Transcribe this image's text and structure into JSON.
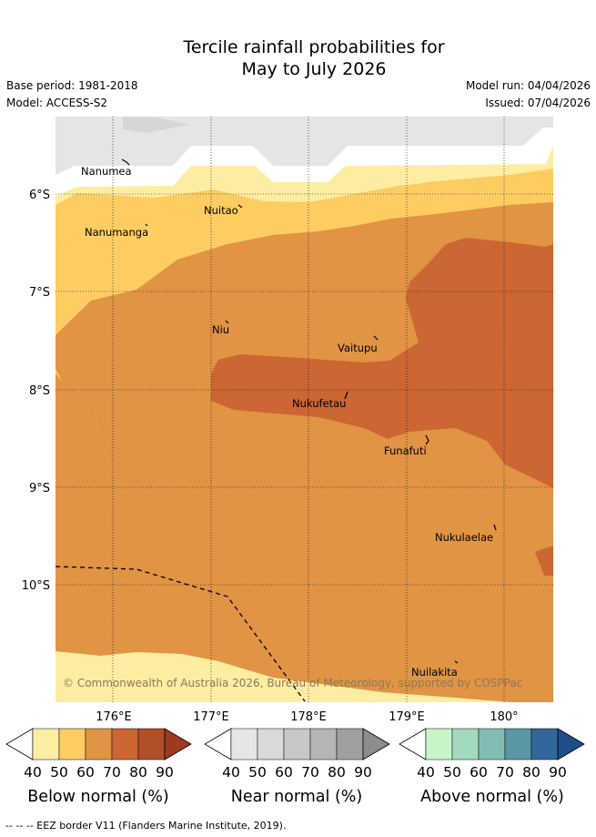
{
  "header": {
    "title_line1": "Tercile rainfall probabilities for",
    "title_line2": "May to July 2026",
    "base_period": "Base period: 1981-2018",
    "model": "Model: ACCESS-S2",
    "model_run": "Model run: 04/04/2026",
    "issued": "Issued: 07/04/2026"
  },
  "map": {
    "places": [
      "Nanumea",
      "Nanumanga",
      "Nuitao",
      "Niu",
      "Vaitupu",
      "Nukufetau",
      "Funafuti",
      "Nukulaelae",
      "Nuilakita"
    ],
    "lat_ticks": [
      "6°S",
      "7°S",
      "8°S",
      "9°S",
      "10°S"
    ],
    "lon_ticks": [
      "176°E",
      "177°E",
      "178°E",
      "179°E",
      "180°"
    ],
    "copyright": "© Commonwealth of Australia 2026, Bureau of Meteorology, supported by COSPPac",
    "colors": {
      "near_normal_grey": "#e5e5e5",
      "below_40_50": "#fdeda2",
      "below_50_60": "#fdcd62",
      "below_60_70": "#e09444",
      "below_70_80": "#cc6633"
    }
  },
  "colorbars": {
    "ticks": [
      "40",
      "50",
      "60",
      "70",
      "80",
      "90"
    ],
    "below": {
      "label": "Below normal (%)",
      "colors": [
        "#fdeda2",
        "#fdcd62",
        "#e09444",
        "#cc6633",
        "#b05028",
        "#9e3a22"
      ]
    },
    "near": {
      "label": "Near normal (%)",
      "colors": [
        "#e6e6e6",
        "#d9d9d9",
        "#c8c8c8",
        "#b5b5b5",
        "#a0a0a0",
        "#8c8c8c"
      ]
    },
    "above": {
      "label": "Above normal (%)",
      "colors": [
        "#c8f5c8",
        "#a3d9bd",
        "#83bcb5",
        "#5a96a3",
        "#336699",
        "#1f4e88"
      ]
    }
  },
  "footer": {
    "eez_legend": "--  --  -- EEZ border V11 (Flanders Marine Institute, 2019)."
  }
}
